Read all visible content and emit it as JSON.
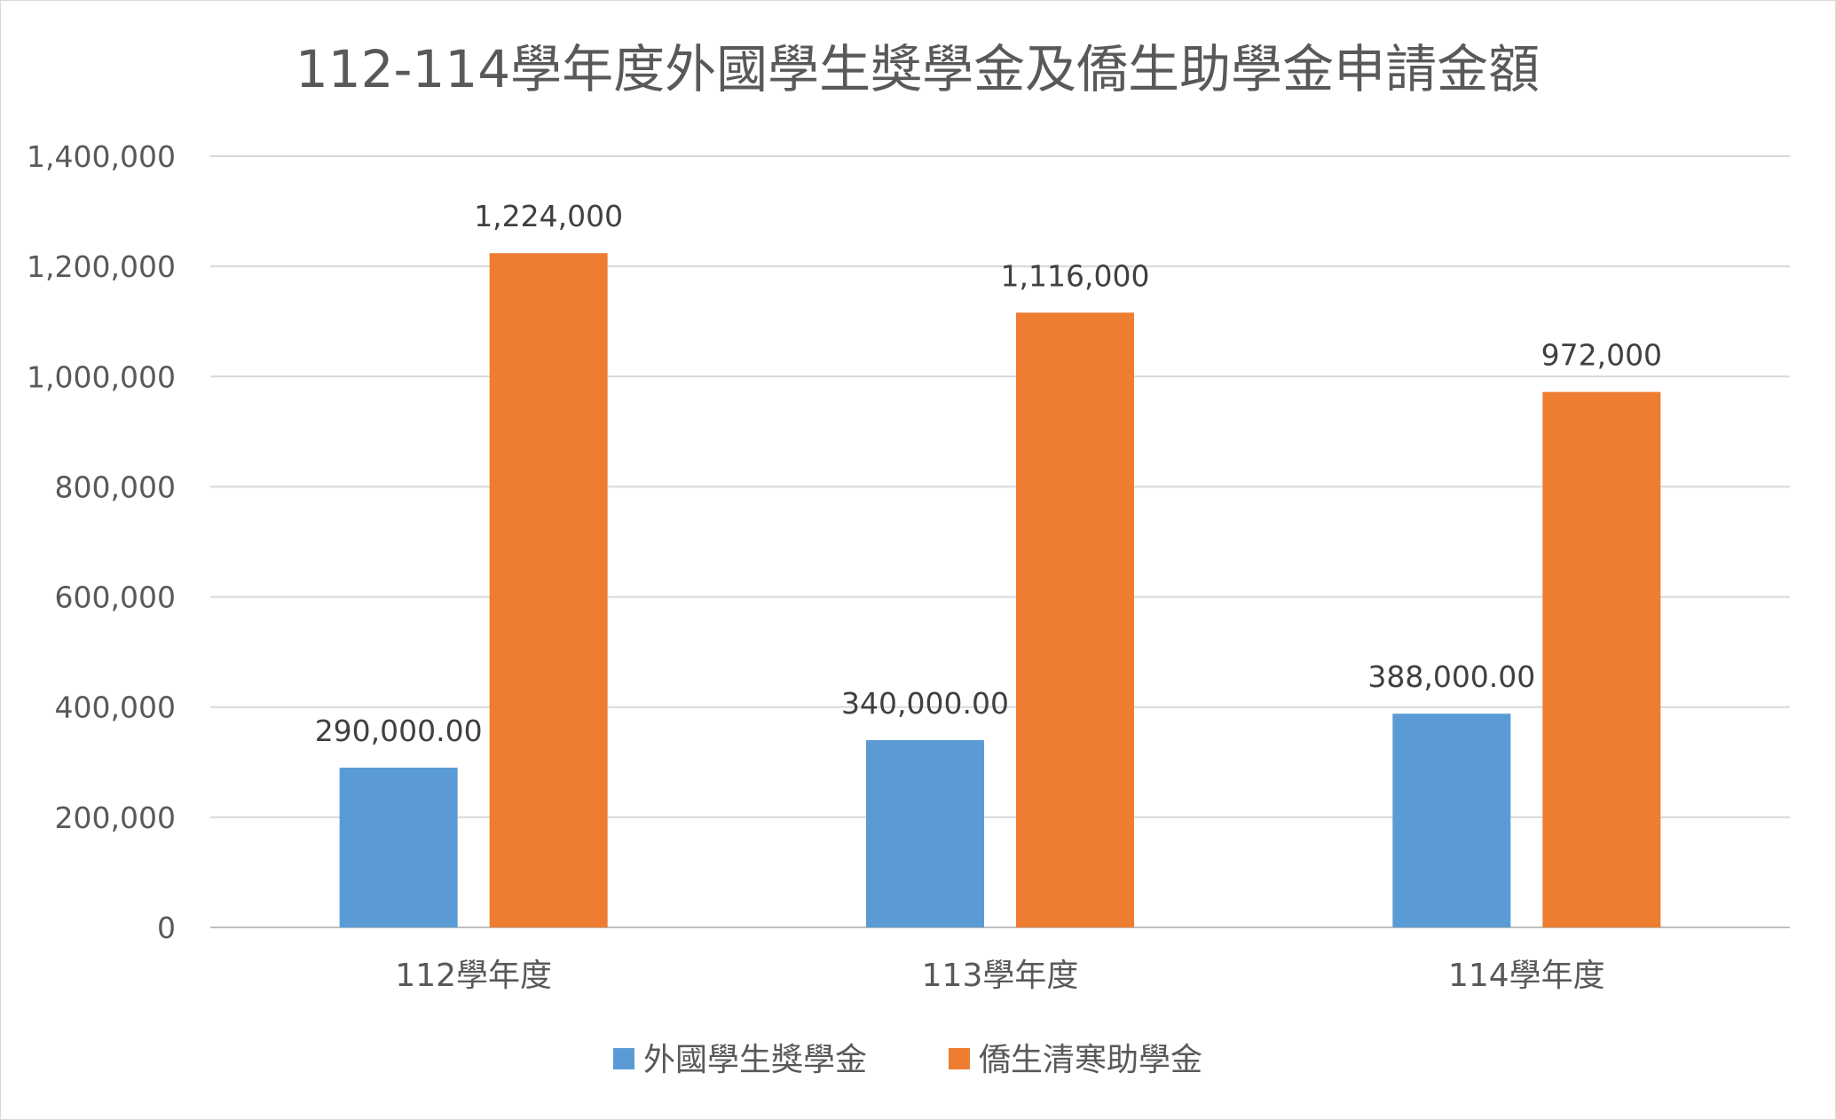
{
  "chart_data": {
    "type": "bar",
    "title": "112-114學年度外國學生獎學金及僑生助學金申請金額",
    "categories": [
      "112學年度",
      "113學年度",
      "114學年度"
    ],
    "series": [
      {
        "name": "外國學生獎學金",
        "values": [
          290000,
          340000,
          388000
        ],
        "labels": [
          "290,000.00",
          "340,000.00",
          "388,000.00"
        ],
        "color": "#5b9bd5"
      },
      {
        "name": "僑生清寒助學金",
        "values": [
          1224000,
          1116000,
          972000
        ],
        "labels": [
          "1,224,000",
          "1,116,000",
          "972,000"
        ],
        "color": "#ed7d31"
      }
    ],
    "ylim": [
      0,
      1400000
    ],
    "y_ticks": [
      0,
      200000,
      400000,
      600000,
      800000,
      1000000,
      1200000,
      1400000
    ],
    "y_tick_labels": [
      "0",
      "200,000",
      "400,000",
      "600,000",
      "800,000",
      "1,000,000",
      "1,200,000",
      "1,400,000"
    ],
    "grid": true,
    "legend_position": "bottom",
    "gridline_color": "#d9d9d9",
    "axis_color": "#bfbfbf"
  }
}
